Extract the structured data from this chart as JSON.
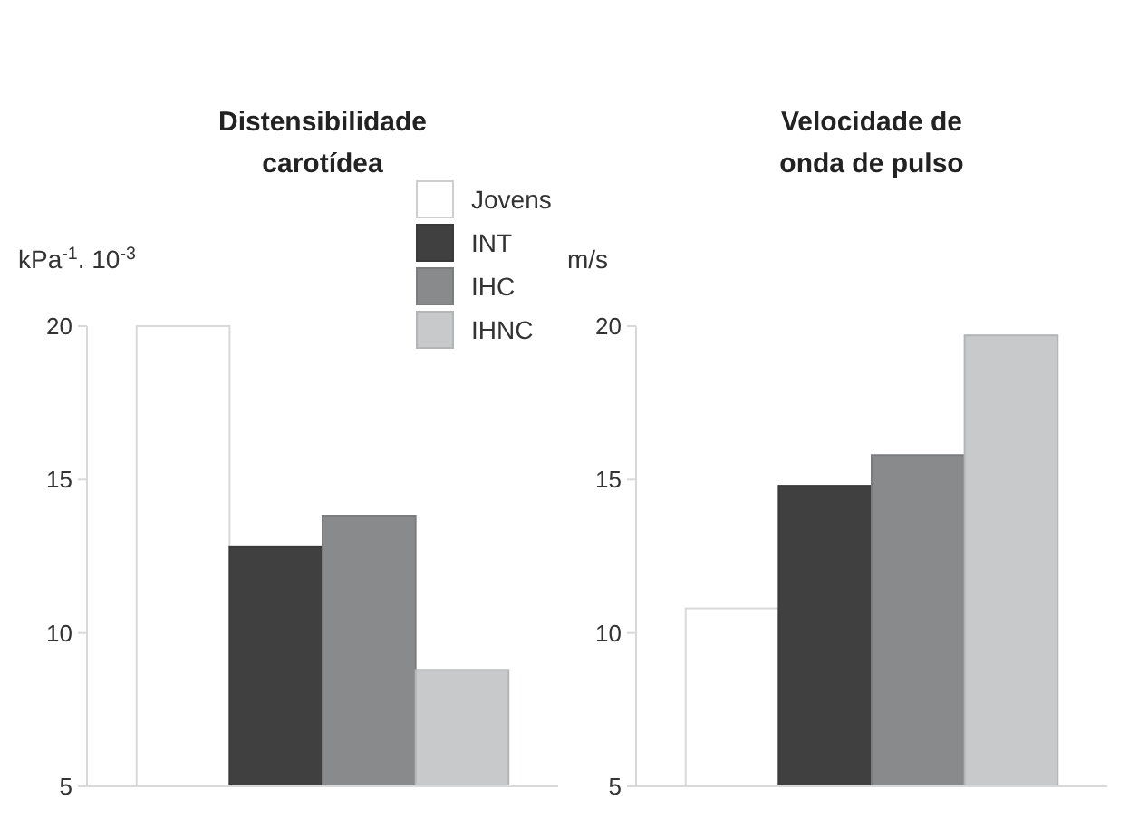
{
  "chart_data": [
    {
      "type": "bar",
      "title": "Distensibilidade carotídea",
      "ylabel": "kPa$^{-1}$. 10$^{-3}$",
      "categories": [
        null
      ],
      "ylim": [
        5,
        20
      ],
      "yticks": [
        5,
        10,
        15,
        20
      ],
      "tick_labels": "y",
      "legend": "top right",
      "series": [
        {
          "name": "Jovens",
          "color": "#ffffff",
          "values": [
            20.0
          ]
        },
        {
          "name": "INT",
          "color": "#404040",
          "values": [
            12.8
          ]
        },
        {
          "name": "IHC",
          "color": "#898a8c",
          "values": [
            13.8
          ]
        },
        {
          "name": "IHNC",
          "color": "#c8c9cb",
          "values": [
            8.8
          ]
        }
      ]
    },
    {
      "type": "bar",
      "title": "Velocidade de onda de pulso",
      "ylabel": "m/s",
      "categories": [
        null
      ],
      "ylim": [
        5,
        20
      ],
      "yticks": [
        5,
        10,
        15,
        20
      ],
      "tick_labels": "y",
      "series": [
        {
          "color": "#ffffff",
          "values": [
            10.8
          ]
        },
        {
          "color": "#404040",
          "values": [
            14.8
          ]
        },
        {
          "color": "#898a8c",
          "values": [
            15.8
          ]
        },
        {
          "color": "#c8c9cb",
          "values": [
            19.7
          ]
        }
      ]
    }
  ]
}
